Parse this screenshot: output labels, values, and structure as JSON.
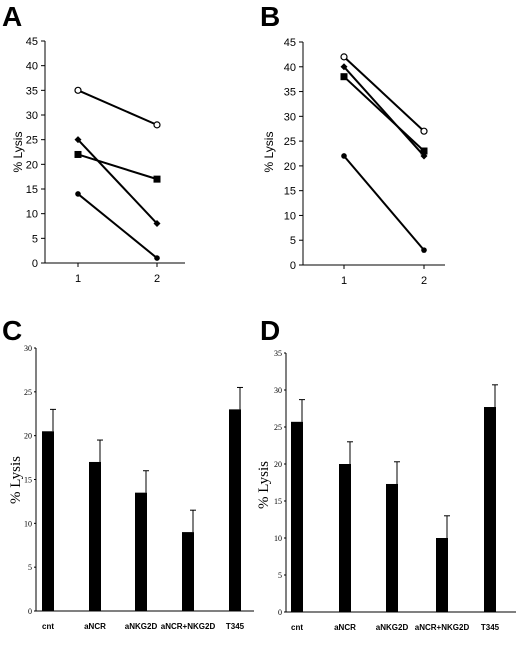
{
  "chart_data": [
    {
      "panel": "A",
      "type": "line",
      "ylabel": "% Lysis",
      "ylim": [
        0,
        45
      ],
      "yticks": [
        "0",
        "5",
        "10",
        "15",
        "20",
        "25",
        "30",
        "35",
        "40",
        "45"
      ],
      "x": [
        "1",
        "2"
      ],
      "series": [
        {
          "marker": "open-circle",
          "values": [
            35,
            28
          ]
        },
        {
          "marker": "diamond",
          "values": [
            25,
            8
          ]
        },
        {
          "marker": "square",
          "values": [
            22,
            17
          ]
        },
        {
          "marker": "circle",
          "values": [
            14,
            1
          ]
        }
      ]
    },
    {
      "panel": "B",
      "type": "line",
      "ylabel": "% Lysis",
      "ylim": [
        0,
        45
      ],
      "yticks": [
        "0",
        "5",
        "10",
        "15",
        "20",
        "25",
        "30",
        "35",
        "40",
        "45"
      ],
      "x": [
        "1",
        "2"
      ],
      "series": [
        {
          "marker": "open-circle",
          "values": [
            42,
            27
          ]
        },
        {
          "marker": "diamond",
          "values": [
            40,
            22
          ]
        },
        {
          "marker": "square",
          "values": [
            38,
            23
          ]
        },
        {
          "marker": "circle",
          "values": [
            22,
            3
          ]
        }
      ]
    },
    {
      "panel": "C",
      "type": "bar",
      "ylabel": "% Lysis",
      "ylim": [
        0,
        30
      ],
      "yticks": [
        "0",
        "5",
        "10",
        "15",
        "20",
        "25",
        "30"
      ],
      "categories": [
        "cnt",
        "aNCR",
        "aNKG2D",
        "aNCR+NKG2D",
        "T345"
      ],
      "values": [
        20.5,
        17,
        13.5,
        9,
        23
      ],
      "errors": [
        2.5,
        2.5,
        2.5,
        2.5,
        2.5
      ]
    },
    {
      "panel": "D",
      "type": "bar",
      "ylabel": "% Lysis",
      "ylim": [
        0,
        35
      ],
      "yticks": [
        "0",
        "5",
        "10",
        "15",
        "20",
        "25",
        "30",
        "35"
      ],
      "categories": [
        "cnt",
        "aNCR",
        "aNKG2D",
        "aNCR+NKG2D",
        "T345"
      ],
      "values": [
        25.7,
        20,
        17.3,
        10,
        27.7
      ],
      "errors": [
        3,
        3,
        3,
        3,
        3
      ]
    }
  ]
}
